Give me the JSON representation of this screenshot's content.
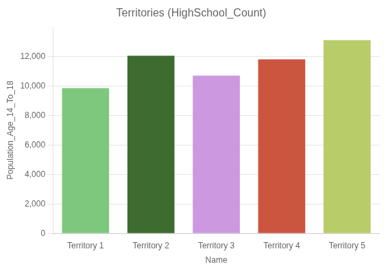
{
  "chart_data": {
    "type": "bar",
    "title": "Territories (HighSchool_Count)",
    "xlabel": "Name",
    "ylabel": "Population_Age_14_To_18",
    "categories": [
      "Territory 1",
      "Territory 2",
      "Territory 3",
      "Territory 4",
      "Territory 5"
    ],
    "values": [
      9850,
      12050,
      10700,
      11800,
      13100
    ],
    "colors": [
      "#7ec87e",
      "#3d6b30",
      "#cc99e0",
      "#cc5540",
      "#b8cc6a"
    ],
    "ylim": [
      0,
      14000
    ],
    "yticks": [
      0,
      {
        "value": 2000,
        "label": "2,000"
      },
      {
        "value": 4000,
        "label": "4,000"
      },
      {
        "value": 6000,
        "label": "6,000"
      },
      {
        "value": 8000,
        "label": "8,000"
      },
      {
        "value": 10000,
        "label": "10,000"
      },
      {
        "value": 12000,
        "label": "12,000"
      }
    ],
    "grid": true
  }
}
